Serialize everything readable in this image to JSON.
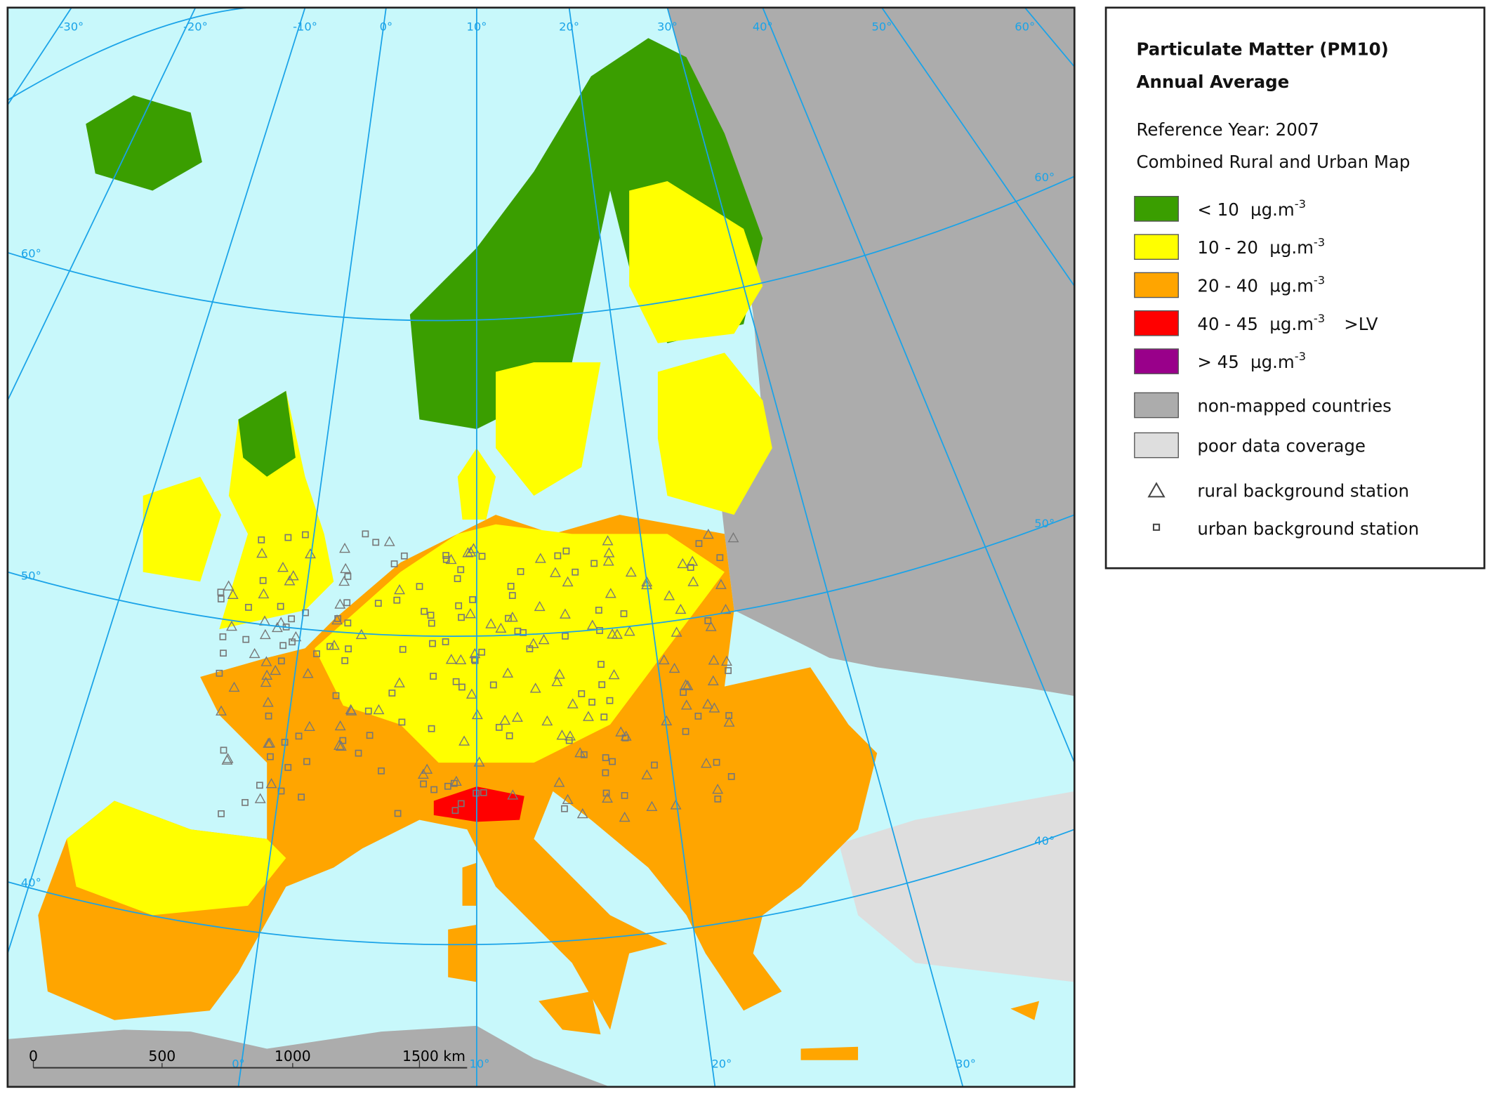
{
  "legend": {
    "title": "Particulate Matter (PM10)",
    "subtitle": "Annual Average",
    "reference_year": "Reference Year: 2007",
    "map_kind": "Combined Rural and Urban Map",
    "classes": [
      {
        "range": "<  10",
        "unit": "µg.m",
        "exponent": "-3",
        "color": "#3a9e00"
      },
      {
        "range": "10 - 20",
        "unit": "µg.m",
        "exponent": "-3",
        "color": "#ffff00"
      },
      {
        "range": "20 - 40",
        "unit": "µg.m",
        "exponent": "-3",
        "color": "#ffa500"
      },
      {
        "range": "40 - 45",
        "unit": "µg.m",
        "exponent": "-3",
        "note": ">LV",
        "color": "#ff0000"
      },
      {
        "range": ">  45",
        "unit": "µg.m",
        "exponent": "-3",
        "color": "#99008a"
      }
    ],
    "other_areas": [
      {
        "label": "non-mapped countries",
        "color": "#acacac"
      },
      {
        "label": "poor data coverage",
        "color": "#dedede"
      }
    ],
    "stations": [
      "rural background station",
      "urban background station"
    ]
  },
  "graticule": {
    "top": [
      "-30°",
      "-20°",
      "-10°",
      "0°",
      "10°",
      "20°",
      "30°",
      "40°",
      "50°",
      "60°"
    ],
    "left": [
      "60°",
      "50°",
      "40°"
    ],
    "right": [
      "60°",
      "50°",
      "40°"
    ],
    "bottom": [
      "0°",
      "10°",
      "20°",
      "30°"
    ]
  },
  "scale_bar": {
    "labels": [
      "0",
      "500",
      "1000",
      "1500 km"
    ]
  }
}
